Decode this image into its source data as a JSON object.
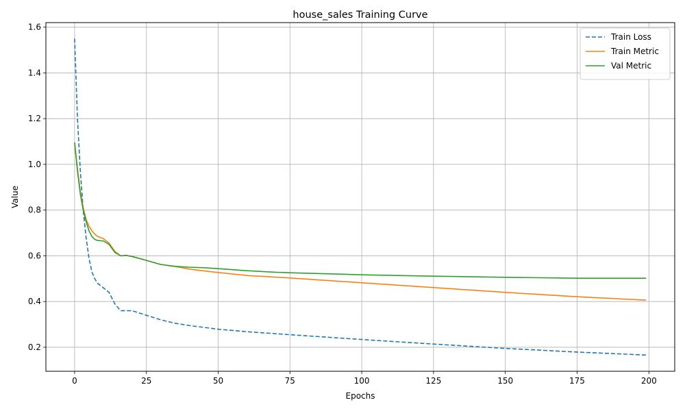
{
  "chart_data": {
    "type": "line",
    "title": "house_sales Training Curve",
    "xlabel": "Epochs",
    "ylabel": "Value",
    "xlim": [
      -10,
      209
    ],
    "ylim": [
      0.095,
      1.62
    ],
    "xticks": [
      0,
      25,
      50,
      75,
      100,
      125,
      150,
      175,
      200
    ],
    "yticks": [
      0.2,
      0.4,
      0.6,
      0.8,
      1.0,
      1.2,
      1.4,
      1.6
    ],
    "ytick_labels": [
      "0.2",
      "0.4",
      "0.6",
      "0.8",
      "1.0",
      "1.2",
      "1.4",
      "1.6"
    ],
    "grid": true,
    "legend_position": "upper right",
    "series": [
      {
        "name": "Train Loss",
        "color": "#1f77b4",
        "style": "dashed",
        "points": [
          [
            0,
            1.55
          ],
          [
            1,
            1.2
          ],
          [
            2,
            0.97
          ],
          [
            3,
            0.8
          ],
          [
            4,
            0.68
          ],
          [
            5,
            0.59
          ],
          [
            6,
            0.53
          ],
          [
            7,
            0.5
          ],
          [
            8,
            0.48
          ],
          [
            10,
            0.46
          ],
          [
            12,
            0.44
          ],
          [
            14,
            0.39
          ],
          [
            16,
            0.36
          ],
          [
            18,
            0.36
          ],
          [
            20,
            0.36
          ],
          [
            25,
            0.34
          ],
          [
            30,
            0.32
          ],
          [
            35,
            0.305
          ],
          [
            40,
            0.295
          ],
          [
            45,
            0.287
          ],
          [
            50,
            0.279
          ],
          [
            60,
            0.268
          ],
          [
            75,
            0.255
          ],
          [
            100,
            0.234
          ],
          [
            125,
            0.214
          ],
          [
            150,
            0.195
          ],
          [
            175,
            0.179
          ],
          [
            199,
            0.166
          ]
        ]
      },
      {
        "name": "Train Metric",
        "color": "#ff7f0e",
        "style": "solid",
        "points": [
          [
            0,
            1.095
          ],
          [
            1,
            0.98
          ],
          [
            2,
            0.88
          ],
          [
            3,
            0.81
          ],
          [
            4,
            0.76
          ],
          [
            5,
            0.73
          ],
          [
            6,
            0.71
          ],
          [
            7,
            0.695
          ],
          [
            8,
            0.685
          ],
          [
            10,
            0.675
          ],
          [
            12,
            0.655
          ],
          [
            14,
            0.62
          ],
          [
            16,
            0.6
          ],
          [
            18,
            0.601
          ],
          [
            20,
            0.597
          ],
          [
            25,
            0.58
          ],
          [
            30,
            0.562
          ],
          [
            35,
            0.553
          ],
          [
            40,
            0.542
          ],
          [
            45,
            0.534
          ],
          [
            50,
            0.527
          ],
          [
            60,
            0.514
          ],
          [
            75,
            0.503
          ],
          [
            100,
            0.482
          ],
          [
            125,
            0.461
          ],
          [
            150,
            0.44
          ],
          [
            175,
            0.421
          ],
          [
            199,
            0.406
          ]
        ]
      },
      {
        "name": "Val Metric",
        "color": "#2ca02c",
        "style": "solid",
        "points": [
          [
            0,
            1.095
          ],
          [
            1,
            0.97
          ],
          [
            2,
            0.87
          ],
          [
            3,
            0.8
          ],
          [
            4,
            0.75
          ],
          [
            5,
            0.71
          ],
          [
            6,
            0.685
          ],
          [
            7,
            0.672
          ],
          [
            8,
            0.667
          ],
          [
            10,
            0.665
          ],
          [
            12,
            0.65
          ],
          [
            14,
            0.615
          ],
          [
            16,
            0.6
          ],
          [
            18,
            0.602
          ],
          [
            20,
            0.597
          ],
          [
            25,
            0.58
          ],
          [
            30,
            0.562
          ],
          [
            35,
            0.554
          ],
          [
            40,
            0.55
          ],
          [
            45,
            0.548
          ],
          [
            50,
            0.544
          ],
          [
            60,
            0.535
          ],
          [
            70,
            0.528
          ],
          [
            75,
            0.526
          ],
          [
            100,
            0.517
          ],
          [
            125,
            0.511
          ],
          [
            150,
            0.506
          ],
          [
            175,
            0.502
          ],
          [
            199,
            0.502
          ]
        ]
      }
    ]
  }
}
